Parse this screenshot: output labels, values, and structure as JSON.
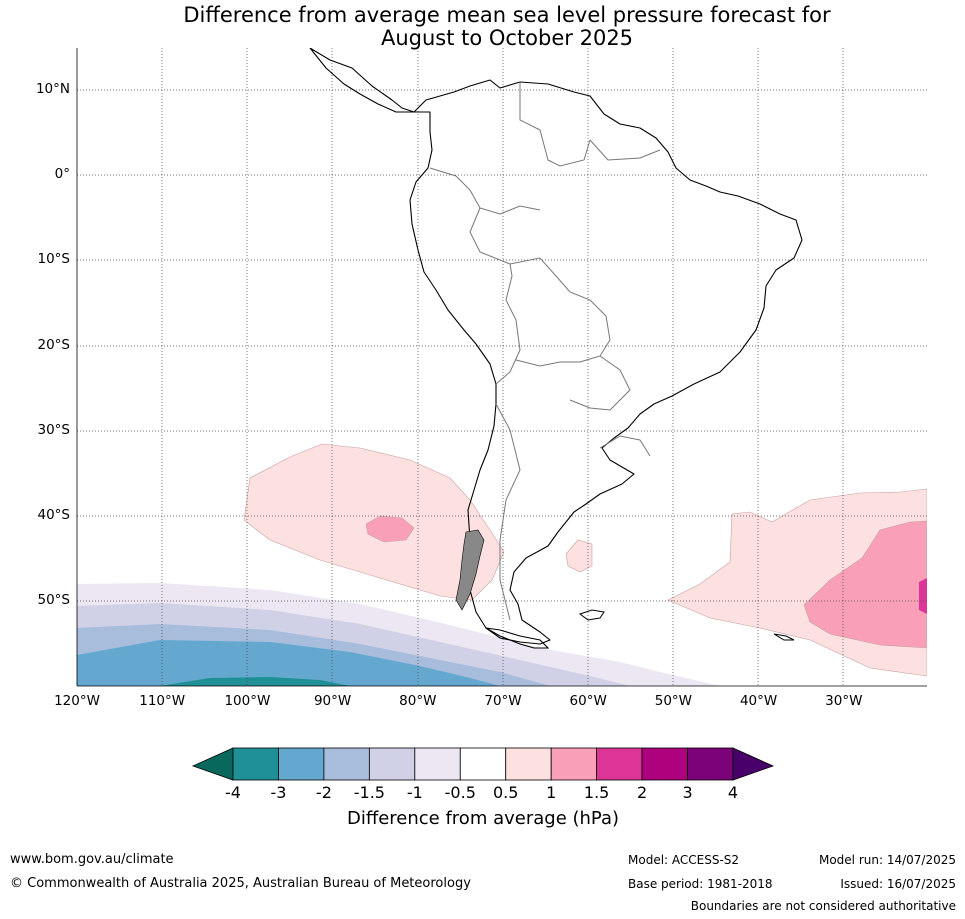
{
  "title_line1": "Difference from average mean sea level pressure forecast for",
  "title_line2": "August to October 2025",
  "lat_labels": [
    "10°N",
    "0°",
    "10°S",
    "20°S",
    "30°S",
    "40°S",
    "50°S"
  ],
  "lon_labels": [
    "120°W",
    "110°W",
    "100°W",
    "90°W",
    "80°W",
    "70°W",
    "60°W",
    "50°W",
    "40°W",
    "30°W"
  ],
  "colorbar": {
    "title": "Difference from average (hPa)",
    "ticks": [
      "-4",
      "-3",
      "-2",
      "-1.5",
      "-1",
      "-0.5",
      "0.5",
      "1",
      "1.5",
      "2",
      "3",
      "4"
    ],
    "colors": [
      "#1f9096",
      "#64a8cf",
      "#a8bcdc",
      "#d0d1e6",
      "#ece7f2",
      "#ffffff",
      "#fde0e0",
      "#f9a0b8",
      "#dd3497",
      "#ae017e",
      "#7a0177"
    ],
    "under_color": "#08685c",
    "over_color": "#4a006a"
  },
  "footer": {
    "url": "www.bom.gov.au/climate",
    "copyright": "© Commonwealth of Australia 2025, Australian Bureau of Meteorology",
    "model": "Model: ACCESS-S2",
    "base_period": "Base period: 1981-2018",
    "model_run": "Model run: 14/07/2025",
    "issued": "Issued: 16/07/2025",
    "disclaimer": "Boundaries are not considered authoritative"
  }
}
